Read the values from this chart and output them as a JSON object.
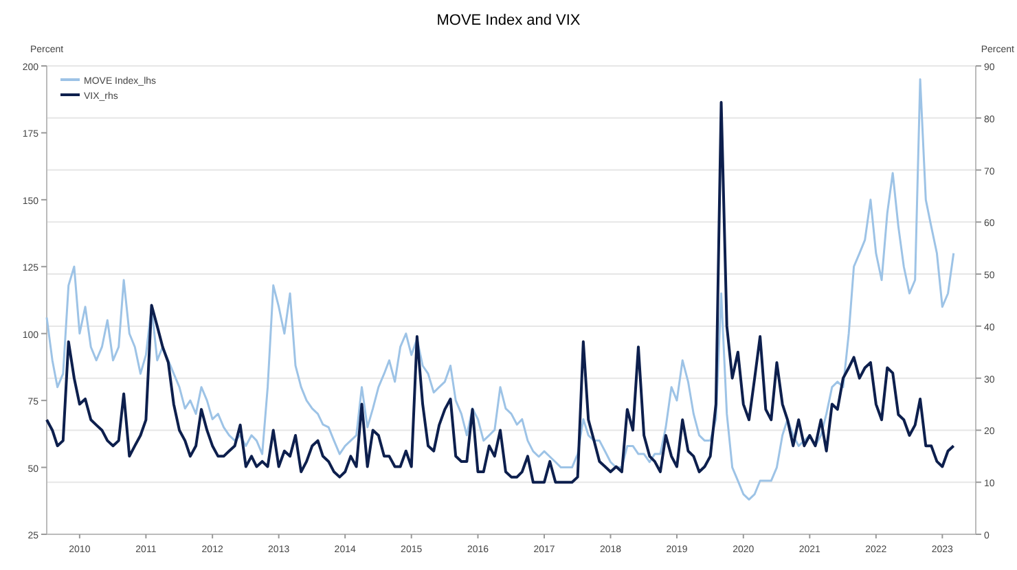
{
  "chart_data": {
    "type": "line",
    "title": "MOVE Index and VIX",
    "ylabel": "Percent",
    "y2label": "Percent",
    "x": [
      "2010-01",
      "2010-02",
      "2010-03",
      "2010-04",
      "2010-05",
      "2010-06",
      "2010-07",
      "2010-08",
      "2010-09",
      "2010-10",
      "2010-11",
      "2010-12",
      "2011-01",
      "2011-02",
      "2011-03",
      "2011-04",
      "2011-05",
      "2011-06",
      "2011-07",
      "2011-08",
      "2011-09",
      "2011-10",
      "2011-11",
      "2011-12",
      "2012-01",
      "2012-02",
      "2012-03",
      "2012-04",
      "2012-05",
      "2012-06",
      "2012-07",
      "2012-08",
      "2012-09",
      "2012-10",
      "2012-11",
      "2012-12",
      "2013-01",
      "2013-02",
      "2013-03",
      "2013-04",
      "2013-05",
      "2013-06",
      "2013-07",
      "2013-08",
      "2013-09",
      "2013-10",
      "2013-11",
      "2013-12",
      "2014-01",
      "2014-02",
      "2014-03",
      "2014-04",
      "2014-05",
      "2014-06",
      "2014-07",
      "2014-08",
      "2014-09",
      "2014-10",
      "2014-11",
      "2014-12",
      "2015-01",
      "2015-02",
      "2015-03",
      "2015-04",
      "2015-05",
      "2015-06",
      "2015-07",
      "2015-08",
      "2015-09",
      "2015-10",
      "2015-11",
      "2015-12",
      "2016-01",
      "2016-02",
      "2016-03",
      "2016-04",
      "2016-05",
      "2016-06",
      "2016-07",
      "2016-08",
      "2016-09",
      "2016-10",
      "2016-11",
      "2016-12",
      "2017-01",
      "2017-02",
      "2017-03",
      "2017-04",
      "2017-05",
      "2017-06",
      "2017-07",
      "2017-08",
      "2017-09",
      "2017-10",
      "2017-11",
      "2017-12",
      "2018-01",
      "2018-02",
      "2018-03",
      "2018-04",
      "2018-05",
      "2018-06",
      "2018-07",
      "2018-08",
      "2018-09",
      "2018-10",
      "2018-11",
      "2018-12",
      "2019-01",
      "2019-02",
      "2019-03",
      "2019-04",
      "2019-05",
      "2019-06",
      "2019-07",
      "2019-08",
      "2019-09",
      "2019-10",
      "2019-11",
      "2019-12",
      "2020-01",
      "2020-02",
      "2020-03",
      "2020-04",
      "2020-05",
      "2020-06",
      "2020-07",
      "2020-08",
      "2020-09",
      "2020-10",
      "2020-11",
      "2020-12",
      "2021-01",
      "2021-02",
      "2021-03",
      "2021-04",
      "2021-05",
      "2021-06",
      "2021-07",
      "2021-08",
      "2021-09",
      "2021-10",
      "2021-11",
      "2021-12",
      "2022-01",
      "2022-02",
      "2022-03",
      "2022-04",
      "2022-05",
      "2022-06",
      "2022-07",
      "2022-08",
      "2022-09",
      "2022-10",
      "2022-11",
      "2022-12",
      "2023-01",
      "2023-02",
      "2023-03",
      "2023-04",
      "2023-05",
      "2023-06",
      "2023-07",
      "2023-08",
      "2023-09"
    ],
    "series": [
      {
        "name": "MOVE Index_lhs",
        "color": "#9dc3e6",
        "values": [
          106,
          90,
          80,
          85,
          118,
          125,
          100,
          110,
          95,
          90,
          95,
          105,
          90,
          95,
          120,
          100,
          95,
          85,
          92,
          110,
          90,
          95,
          90,
          85,
          80,
          72,
          75,
          70,
          80,
          75,
          68,
          70,
          65,
          62,
          60,
          62,
          58,
          62,
          60,
          55,
          80,
          118,
          110,
          100,
          115,
          88,
          80,
          75,
          72,
          70,
          66,
          65,
          60,
          55,
          58,
          60,
          62,
          80,
          65,
          72,
          80,
          85,
          90,
          82,
          95,
          100,
          92,
          98,
          88,
          85,
          78,
          80,
          82,
          88,
          75,
          70,
          62,
          72,
          68,
          60,
          62,
          64,
          80,
          72,
          70,
          66,
          68,
          60,
          56,
          54,
          56,
          54,
          52,
          50,
          50,
          50,
          55,
          68,
          62,
          60,
          60,
          56,
          52,
          50,
          50,
          58,
          58,
          55,
          55,
          52,
          55,
          55,
          65,
          80,
          75,
          90,
          82,
          70,
          62,
          60,
          60,
          68,
          115,
          70,
          50,
          45,
          40,
          38,
          40,
          45,
          45,
          45,
          50,
          62,
          68,
          62,
          58,
          60,
          62,
          58,
          62,
          70,
          80,
          82,
          80,
          100,
          125,
          130,
          135,
          150,
          130,
          120,
          145,
          160,
          140,
          125,
          115,
          120,
          195,
          150,
          140,
          130,
          110,
          115,
          130
        ]
      },
      {
        "name": "VIX_rhs",
        "color": "#0d1f4d",
        "axis": "y2",
        "values": [
          22,
          20,
          17,
          18,
          37,
          30,
          25,
          26,
          22,
          21,
          20,
          18,
          17,
          18,
          27,
          15,
          17,
          19,
          22,
          44,
          40,
          36,
          33,
          25,
          20,
          18,
          15,
          17,
          24,
          20,
          17,
          15,
          15,
          16,
          17,
          21,
          13,
          15,
          13,
          14,
          13,
          20,
          13,
          16,
          15,
          19,
          12,
          14,
          17,
          18,
          15,
          14,
          12,
          11,
          12,
          15,
          13,
          25,
          13,
          20,
          19,
          15,
          15,
          13,
          13,
          16,
          13,
          38,
          25,
          17,
          16,
          21,
          24,
          26,
          15,
          14,
          14,
          24,
          12,
          12,
          17,
          15,
          20,
          12,
          11,
          11,
          12,
          15,
          10,
          10,
          10,
          14,
          10,
          10,
          10,
          10,
          11,
          37,
          22,
          18,
          14,
          13,
          12,
          13,
          12,
          24,
          20,
          36,
          19,
          15,
          14,
          12,
          19,
          15,
          13,
          22,
          16,
          15,
          12,
          13,
          15,
          25,
          83,
          40,
          30,
          35,
          25,
          22,
          30,
          38,
          24,
          22,
          33,
          25,
          22,
          17,
          22,
          17,
          19,
          17,
          22,
          16,
          25,
          24,
          30,
          32,
          34,
          30,
          32,
          33,
          25,
          22,
          32,
          31,
          23,
          22,
          19,
          21,
          26,
          17,
          17,
          14,
          13,
          16,
          17
        ]
      }
    ],
    "ylim": [
      25,
      200
    ],
    "yticks": [
      25,
      50,
      75,
      100,
      125,
      150,
      175,
      200
    ],
    "y2lim": [
      0,
      90
    ],
    "y2ticks": [
      0,
      10,
      20,
      30,
      40,
      50,
      60,
      70,
      80,
      90
    ],
    "xlim": [
      "2010-01-01",
      "2024-01-01"
    ],
    "xticks": [
      {
        "value": "2010-07-01",
        "label": "2010"
      },
      {
        "value": "2011-07-01",
        "label": "2011"
      },
      {
        "value": "2012-07-01",
        "label": "2012"
      },
      {
        "value": "2013-07-01",
        "label": "2013"
      },
      {
        "value": "2014-07-01",
        "label": "2014"
      },
      {
        "value": "2015-07-01",
        "label": "2015"
      },
      {
        "value": "2016-07-01",
        "label": "2016"
      },
      {
        "value": "2017-07-01",
        "label": "2017"
      },
      {
        "value": "2018-07-01",
        "label": "2018"
      },
      {
        "value": "2019-07-01",
        "label": "2019"
      },
      {
        "value": "2020-07-01",
        "label": "2020"
      },
      {
        "value": "2021-07-01",
        "label": "2021"
      },
      {
        "value": "2022-07-01",
        "label": "2022"
      },
      {
        "value": "2023-07-01",
        "label": "2023"
      }
    ],
    "grid": "y2",
    "legend": "top left",
    "line_style": "solid"
  }
}
